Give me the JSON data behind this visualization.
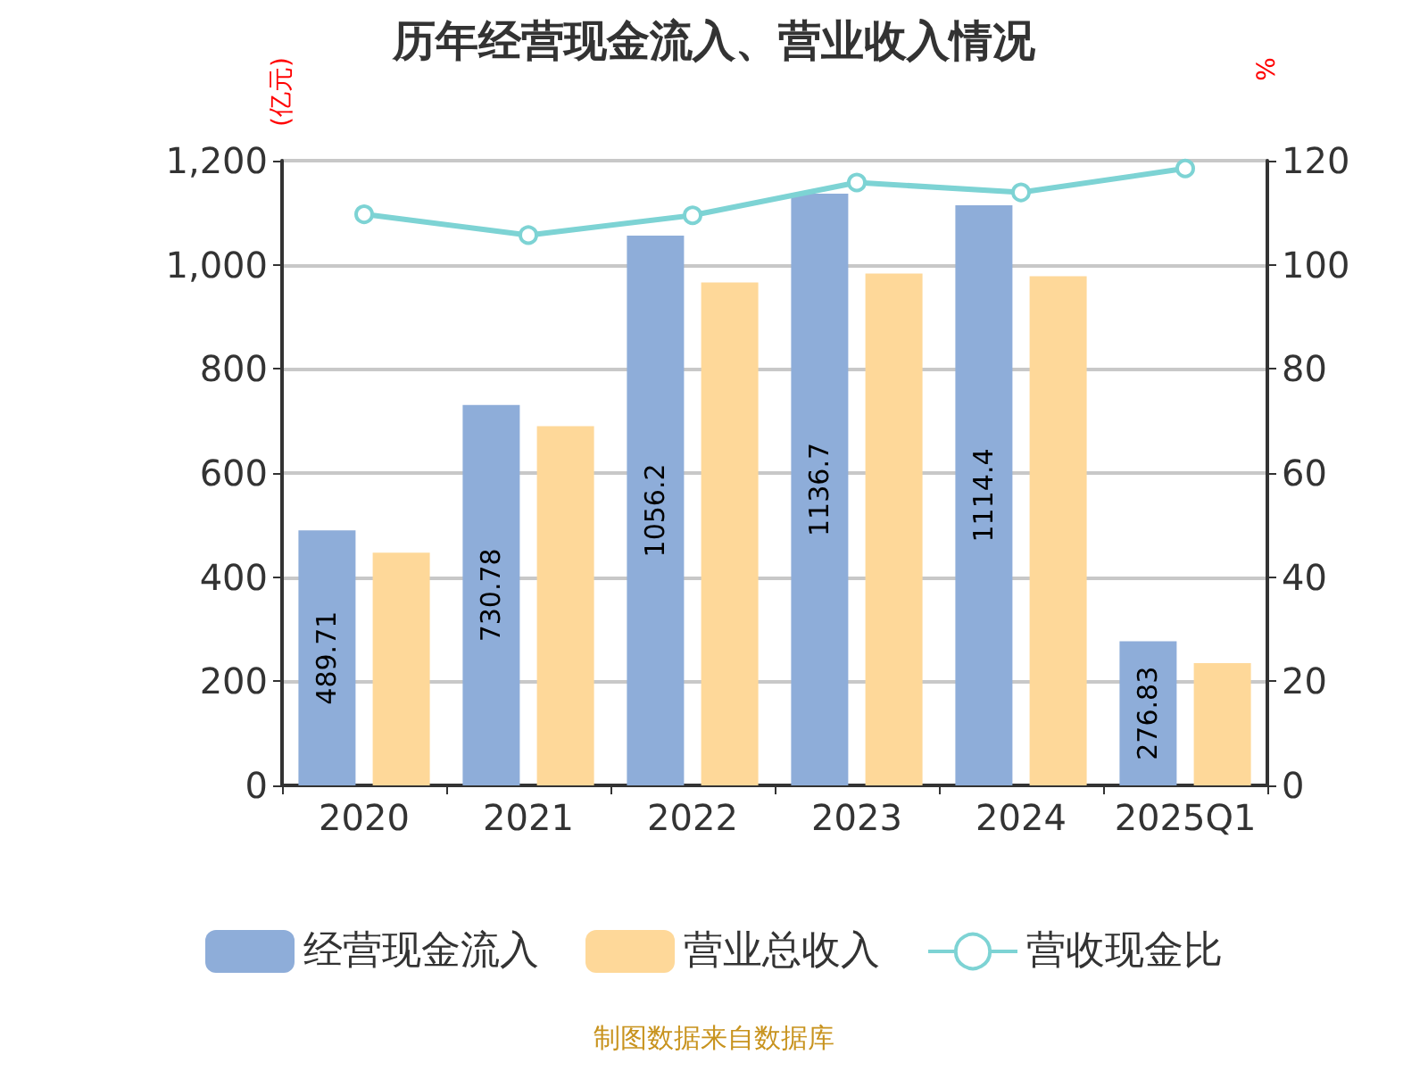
{
  "chart_data": {
    "type": "bar",
    "title": "历年经营现金流入、营业收入情况",
    "ylabel": "(亿元)",
    "y2label": "%",
    "categories": [
      "2020",
      "2021",
      "2022",
      "2023",
      "2024",
      "2025Q1"
    ],
    "series": [
      {
        "name": "经营现金流入",
        "color": "#8eadd9",
        "values": [
          489.71,
          730.78,
          1056.2,
          1136.7,
          1114.4,
          276.83
        ],
        "data_labels": true
      },
      {
        "name": "营业总收入",
        "color": "#fed899",
        "values": [
          447,
          690,
          966,
          983,
          978,
          235
        ]
      },
      {
        "name": "营收现金比",
        "type": "line",
        "axis": "y2",
        "color": "#7dd3d4",
        "marker": "circle",
        "values": [
          109.7,
          105.7,
          109.5,
          115.8,
          113.9,
          118.5
        ]
      }
    ],
    "ylim": [
      0,
      1200
    ],
    "yticks": [
      0,
      200,
      400,
      600,
      800,
      {
        "value": 1000,
        "label": "1,000"
      },
      {
        "value": 1200,
        "label": "1,200"
      }
    ],
    "y2lim": [
      0,
      120
    ],
    "y2ticks": [
      0,
      20,
      40,
      60,
      80,
      100,
      120
    ],
    "grid": "y",
    "legend": "bottom",
    "annotations": [
      "制图数据来自数据库"
    ]
  }
}
